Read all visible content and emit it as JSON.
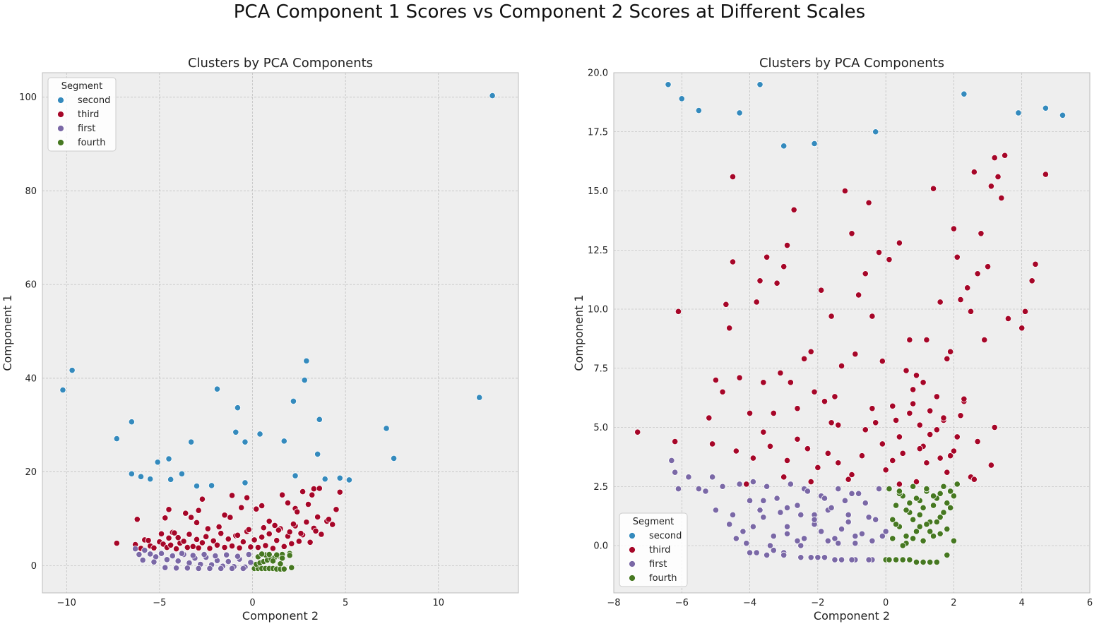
{
  "figure": {
    "title": "PCA Component 1 Scores vs Component 2 Scores at Different Scales"
  },
  "colors": {
    "second": "#348ABD",
    "third": "#A60628",
    "first": "#7A68A6",
    "fourth": "#467821",
    "panel_bg": "#EEEEEE",
    "grid": "#B2B2B2"
  },
  "chart_data": [
    {
      "type": "scatter",
      "title": "Clusters by PCA Components",
      "xlabel": "Component 2",
      "ylabel": "Component 1",
      "xlim": [
        -11.3,
        14.3
      ],
      "ylim": [
        -5.8,
        105.2
      ],
      "xticks": [
        -10,
        -5,
        0,
        5,
        10
      ],
      "yticks": [
        0,
        20,
        40,
        60,
        80,
        100
      ],
      "tick_labels_x": [
        "−10",
        "−5",
        "0",
        "5",
        "10"
      ],
      "tick_labels_y": [
        "0",
        "20",
        "40",
        "60",
        "80",
        "100"
      ],
      "grid": true,
      "legend": {
        "title": "Segment",
        "placement": "upper-left",
        "entries": [
          "second",
          "third",
          "first",
          "fourth"
        ]
      },
      "series": [
        {
          "name": "second",
          "x": [
            12.9,
            -10.2,
            -9.7,
            -7.3,
            -6.5,
            -6.5,
            -6.0,
            -5.5,
            -5.1,
            -4.5,
            -4.4,
            -3.8,
            -3.3,
            -3.0,
            -2.2,
            -1.9,
            -0.9,
            -0.8,
            -0.4,
            -0.4,
            0.4,
            1.7,
            2.2,
            2.3,
            2.8,
            2.9,
            3.5,
            3.6,
            3.9,
            4.7,
            5.2,
            7.2,
            7.6,
            12.2
          ],
          "y": [
            100.3,
            37.5,
            41.7,
            27.1,
            30.7,
            19.6,
            19.0,
            18.5,
            22.1,
            22.8,
            18.4,
            19.6,
            26.4,
            17.0,
            17.1,
            37.7,
            28.5,
            33.7,
            26.4,
            17.7,
            28.1,
            26.6,
            35.1,
            19.2,
            39.6,
            43.7,
            23.8,
            31.2,
            18.5,
            18.7,
            18.3,
            29.3,
            22.9,
            35.9
          ]
        },
        {
          "name": "third",
          "x": [
            -7.3,
            -6.3,
            -6.0,
            -5.8,
            -5.5,
            -5.3,
            -5.0,
            -4.9,
            -4.8,
            -4.6,
            -4.5,
            -4.4,
            -4.3,
            -4.1,
            -4.0,
            -3.9,
            -3.7,
            -3.5,
            -3.4,
            -3.2,
            -3.0,
            -2.9,
            -2.7,
            -2.5,
            -2.3,
            -2.1,
            -1.9,
            -1.7,
            -1.5,
            -1.3,
            -1.1,
            -0.9,
            -0.7,
            -0.5,
            -0.3,
            -0.1,
            0.1,
            0.3,
            0.5,
            0.7,
            0.9,
            1.1,
            1.3,
            1.5,
            1.7,
            1.9,
            2.1,
            2.3,
            2.5,
            2.7,
            2.9,
            3.1,
            3.3,
            3.5,
            3.7,
            4.0,
            4.3,
            4.5,
            4.7,
            -6.2,
            -4.7,
            -4.5,
            -3.6,
            -3.3,
            -2.7,
            -1.5,
            -1.1,
            -0.6,
            -0.3,
            0.5,
            1.6,
            2.3,
            2.7,
            3.0,
            3.3,
            3.6,
            -2.9,
            -1.2,
            0.2,
            0.9,
            1.9,
            2.4,
            3.2,
            4.1,
            -5.6,
            -4.2,
            -2.4,
            -0.8,
            0.6,
            1.4,
            2.0,
            2.6,
            3.4,
            -3.0,
            -1.8,
            -0.2,
            1.2,
            2.2
          ],
          "y": [
            4.8,
            4.5,
            3.7,
            5.5,
            4.2,
            3.8,
            5.1,
            6.8,
            4.6,
            3.9,
            5.9,
            4.4,
            7.1,
            3.6,
            6.0,
            4.8,
            5.2,
            3.9,
            6.7,
            4.1,
            5.6,
            3.8,
            4.9,
            6.2,
            3.7,
            5.3,
            4.4,
            6.9,
            3.9,
            5.7,
            4.2,
            6.4,
            3.8,
            5.1,
            7.3,
            4.0,
            5.5,
            3.9,
            6.1,
            4.3,
            6.8,
            3.7,
            5.4,
            7.9,
            4.1,
            6.3,
            4.7,
            8.5,
            5.2,
            6.6,
            9.3,
            5.0,
            8.0,
            10.4,
            6.7,
            9.5,
            8.8,
            12.0,
            15.7,
            9.9,
            10.2,
            12.0,
            11.2,
            10.3,
            14.2,
            10.8,
            15.0,
            12.4,
            14.5,
            12.8,
            15.1,
            12.2,
            15.8,
            13.1,
            16.4,
            16.5,
            11.8,
            10.3,
            12.1,
            9.5,
            13.4,
            11.5,
            15.1,
            9.9,
            5.4,
            7.0,
            7.9,
            6.5,
            8.1,
            7.6,
            7.2,
            6.9,
            7.4,
            9.2,
            8.3,
            7.7,
            8.6,
            8.9
          ]
        },
        {
          "name": "first",
          "x": [
            -6.3,
            -6.1,
            -5.8,
            -5.5,
            -5.2,
            -4.9,
            -4.6,
            -4.3,
            -4.0,
            -3.7,
            -3.4,
            -3.1,
            -2.8,
            -2.5,
            -2.2,
            -1.9,
            -1.6,
            -1.3,
            -1.0,
            -0.7,
            -0.4,
            -0.1,
            -5.9,
            -5.3,
            -4.7,
            -4.1,
            -3.5,
            -2.9,
            -2.3,
            -1.7,
            -1.1,
            -0.5,
            -3.8,
            -3.2,
            -2.6,
            -2.0,
            -1.4,
            -0.8,
            -0.2
          ],
          "y": [
            3.6,
            2.4,
            3.3,
            2.5,
            1.9,
            2.6,
            1.3,
            2.1,
            1.0,
            2.4,
            0.6,
            1.6,
            0.3,
            1.8,
            0.2,
            1.1,
            -0.1,
            0.9,
            -0.2,
            1.4,
            -0.3,
            0.7,
            1.2,
            0.8,
            -0.4,
            -0.5,
            -0.5,
            -0.6,
            -0.6,
            -0.6,
            -0.6,
            -0.6,
            2.6,
            2.2,
            2.4,
            2.1,
            2.3,
            2.0,
            2.4
          ]
        },
        {
          "name": "fourth",
          "x": [
            0.1,
            0.3,
            0.5,
            0.7,
            0.9,
            1.1,
            1.3,
            1.5,
            1.7,
            0.2,
            0.4,
            0.6,
            0.8,
            1.0,
            1.2,
            1.4,
            1.6,
            2.0,
            0.3,
            0.7,
            1.1,
            1.5,
            0.5,
            0.9,
            1.3,
            1.6,
            2.0,
            2.1
          ],
          "y": [
            -0.6,
            -0.6,
            -0.6,
            -0.6,
            -0.6,
            -0.6,
            -0.7,
            -0.7,
            -0.7,
            0.3,
            0.6,
            0.9,
            1.2,
            1.5,
            1.8,
            2.1,
            2.4,
            2.6,
            1.9,
            2.3,
            1.0,
            0.4,
            2.5,
            2.4,
            2.3,
            1.6,
            2.2,
            -0.4
          ]
        }
      ]
    },
    {
      "type": "scatter",
      "title": "Clusters by PCA Components",
      "xlabel": "Component 2",
      "ylabel": "Component 1",
      "xlim": [
        -8,
        6
      ],
      "ylim": [
        -2,
        20
      ],
      "xticks": [
        -8,
        -6,
        -4,
        -2,
        0,
        2,
        4,
        6
      ],
      "yticks": [
        0,
        2.5,
        5,
        7.5,
        10,
        12.5,
        15,
        17.5,
        20
      ],
      "tick_labels_x": [
        "−8",
        "−6",
        "−4",
        "−2",
        "0",
        "2",
        "4",
        "6"
      ],
      "tick_labels_y": [
        "0.0",
        "2.5",
        "5.0",
        "7.5",
        "10.0",
        "12.5",
        "15.0",
        "17.5",
        "20.0"
      ],
      "grid": true,
      "legend": {
        "title": "Segment",
        "placement": "lower-left",
        "entries": [
          "second",
          "third",
          "first",
          "fourth"
        ]
      },
      "series": [
        {
          "name": "second",
          "x": [
            -6.4,
            -6.0,
            -5.5,
            -4.3,
            -3.7,
            -3.0,
            -2.1,
            -0.3,
            2.3,
            3.9,
            4.7,
            5.2
          ],
          "y": [
            19.5,
            18.9,
            18.4,
            18.3,
            19.5,
            16.9,
            17.0,
            17.5,
            19.1,
            18.3,
            18.5,
            18.2
          ]
        },
        {
          "name": "third",
          "x": [
            -7.3,
            -6.1,
            -6.2,
            -5.2,
            -5.0,
            -4.8,
            -4.7,
            -4.6,
            -4.5,
            -4.5,
            -4.3,
            -4.0,
            -3.8,
            -3.7,
            -3.6,
            -3.5,
            -3.3,
            -3.2,
            -3.1,
            -3.0,
            -2.9,
            -2.8,
            -2.7,
            -2.6,
            -2.4,
            -2.2,
            -2.1,
            -1.9,
            -1.8,
            -1.6,
            -1.5,
            -1.3,
            -1.2,
            -1.0,
            -0.9,
            -0.8,
            -0.6,
            -0.5,
            -0.4,
            -0.3,
            -0.2,
            -0.1,
            0.1,
            0.2,
            0.4,
            0.4,
            0.6,
            0.7,
            0.8,
            0.9,
            1.0,
            1.1,
            1.2,
            1.3,
            1.4,
            1.5,
            1.6,
            1.7,
            1.8,
            1.9,
            2.0,
            2.1,
            2.2,
            2.3,
            2.4,
            2.5,
            2.6,
            2.7,
            2.8,
            2.9,
            3.0,
            3.1,
            3.2,
            3.3,
            3.4,
            3.5,
            3.6,
            4.0,
            4.1,
            4.3,
            4.4,
            4.7,
            -5.1,
            -4.4,
            -3.9,
            -3.4,
            -2.9,
            -2.3,
            -1.7,
            -1.4,
            -0.7,
            -0.1,
            0.5,
            1.1,
            1.6,
            2.1,
            2.7,
            3.2,
            -4.1,
            -3.0,
            -2.0,
            -1.1,
            0.0,
            0.9,
            1.8,
            2.5,
            3.1,
            -3.6,
            -2.6,
            -1.6,
            -0.6,
            0.3,
            1.3,
            2.2,
            -2.2,
            -1.0,
            0.2,
            1.0,
            1.9,
            2.6,
            -1.4,
            -0.4,
            0.7,
            1.5,
            2.3,
            0.4,
            1.2,
            2.0,
            0.8,
            1.7
          ],
          "y": [
            4.8,
            9.9,
            4.4,
            5.4,
            7.0,
            6.5,
            10.2,
            9.2,
            15.6,
            12.0,
            7.1,
            5.6,
            10.3,
            11.2,
            6.9,
            12.2,
            5.6,
            11.1,
            7.3,
            11.8,
            12.7,
            6.9,
            14.2,
            5.8,
            7.9,
            8.2,
            6.5,
            10.8,
            6.1,
            9.7,
            6.3,
            7.6,
            15.0,
            13.2,
            8.1,
            10.6,
            11.5,
            14.5,
            9.7,
            5.2,
            12.4,
            7.8,
            12.1,
            5.9,
            12.8,
            4.6,
            7.4,
            8.7,
            6.6,
            7.2,
            5.1,
            6.9,
            8.7,
            5.7,
            15.1,
            6.3,
            10.3,
            5.3,
            7.9,
            8.2,
            13.4,
            12.2,
            10.4,
            6.1,
            10.9,
            9.9,
            15.8,
            11.5,
            13.2,
            8.7,
            11.8,
            15.2,
            16.4,
            15.6,
            14.7,
            16.5,
            9.6,
            9.2,
            9.9,
            11.2,
            11.9,
            15.7,
            4.3,
            4.0,
            3.7,
            4.2,
            3.6,
            4.1,
            3.9,
            3.5,
            3.8,
            4.3,
            3.9,
            4.2,
            3.7,
            4.6,
            4.4,
            5.0,
            2.6,
            2.9,
            3.3,
            2.8,
            3.2,
            2.7,
            3.1,
            2.9,
            3.4,
            4.8,
            4.5,
            5.2,
            4.9,
            5.3,
            4.7,
            5.5,
            2.7,
            3.0,
            3.6,
            4.1,
            3.8,
            2.8,
            5.1,
            5.8,
            5.6,
            4.9,
            6.2,
            2.6,
            3.5,
            4.0,
            6.0,
            5.4
          ]
        },
        {
          "name": "first",
          "x": [
            -6.3,
            -6.2,
            -6.1,
            -5.8,
            -5.5,
            -5.3,
            -5.1,
            -5.0,
            -4.8,
            -4.5,
            -4.3,
            -4.2,
            -4.0,
            -3.9,
            -3.8,
            -3.6,
            -3.5,
            -3.3,
            -3.2,
            -3.0,
            -2.9,
            -2.8,
            -2.6,
            -2.5,
            -2.4,
            -2.2,
            -2.1,
            -1.9,
            -1.8,
            -1.7,
            -1.5,
            -1.4,
            -1.3,
            -1.1,
            -1.0,
            -0.9,
            -0.7,
            -0.6,
            -0.4,
            -0.3,
            -0.2,
            0.0,
            -4.6,
            -4.1,
            -3.7,
            -3.3,
            -2.9,
            -2.5,
            -2.1,
            -1.7,
            -1.3,
            -0.9,
            -0.5,
            -0.1,
            -4.4,
            -3.9,
            -3.4,
            -2.9,
            -2.4,
            -1.9,
            -1.4,
            -0.9,
            -0.4,
            -3.6,
            -3.1,
            -2.6,
            -2.1,
            -1.6,
            -1.1,
            -0.6,
            -4.0,
            -3.5,
            -3.0,
            -2.5,
            -2.0,
            -1.5,
            -1.0,
            -0.5,
            0.0,
            -2.3,
            -1.8,
            -1.2,
            -0.8
          ],
          "y": [
            3.6,
            3.1,
            2.4,
            2.9,
            2.4,
            2.3,
            2.9,
            1.5,
            2.5,
            1.3,
            2.6,
            0.6,
            1.9,
            2.7,
            -0.3,
            1.2,
            2.5,
            0.4,
            2.0,
            -0.3,
            1.6,
            2.6,
            0.2,
            1.3,
            2.4,
            -0.5,
            0.9,
            2.1,
            -0.5,
            1.5,
            0.3,
            2.4,
            -0.6,
            1.0,
            2.2,
            -0.6,
            0.5,
            1.8,
            -0.6,
            1.1,
            2.4,
            0.6,
            0.9,
            0.1,
            1.5,
            -0.2,
            0.8,
            0.0,
            1.3,
            0.2,
            0.7,
            0.1,
            1.2,
            0.4,
            0.3,
            0.8,
            0.0,
            0.5,
            0.3,
            0.6,
            0.1,
            0.4,
            0.2,
            1.9,
            1.4,
            1.7,
            1.1,
            1.6,
            1.3,
            1.8,
            -0.3,
            -0.4,
            -0.4,
            -0.5,
            -0.5,
            -0.6,
            -0.6,
            -0.6,
            -0.6,
            2.3,
            2.0,
            1.9,
            2.2
          ]
        },
        {
          "name": "fourth",
          "x": [
            0.0,
            0.1,
            0.2,
            0.3,
            0.4,
            0.5,
            0.6,
            0.7,
            0.8,
            0.9,
            1.0,
            1.1,
            1.2,
            1.3,
            1.4,
            1.5,
            1.6,
            1.7,
            1.8,
            1.9,
            2.0,
            2.1,
            0.1,
            0.3,
            0.5,
            0.7,
            0.9,
            1.1,
            1.3,
            1.5,
            0.2,
            0.4,
            0.6,
            0.8,
            1.0,
            1.2,
            1.4,
            1.6,
            1.8,
            0.3,
            0.7,
            1.1,
            1.5,
            1.9,
            0.5,
            0.9,
            1.3,
            1.7,
            0.4,
            0.8,
            1.2,
            1.6,
            2.0,
            0.6,
            1.0,
            1.4,
            1.8
          ],
          "y": [
            -0.6,
            2.4,
            0.3,
            1.7,
            0.8,
            2.1,
            0.1,
            1.4,
            2.5,
            0.6,
            1.9,
            0.2,
            2.3,
            1.0,
            0.4,
            2.0,
            1.2,
            2.5,
            0.7,
            1.6,
            2.1,
            2.6,
            -0.6,
            -0.6,
            -0.6,
            -0.6,
            -0.7,
            -0.7,
            -0.7,
            -0.7,
            1.1,
            2.2,
            1.5,
            0.3,
            1.3,
            2.4,
            1.7,
            0.5,
            1.8,
            0.9,
            1.8,
            1.6,
            1.0,
            2.3,
            0.0,
            2.0,
            0.6,
            1.4,
            2.3,
            1.1,
            0.9,
            2.2,
            0.2,
            0.4,
            0.8,
            2.1,
            -0.4
          ]
        }
      ]
    }
  ]
}
